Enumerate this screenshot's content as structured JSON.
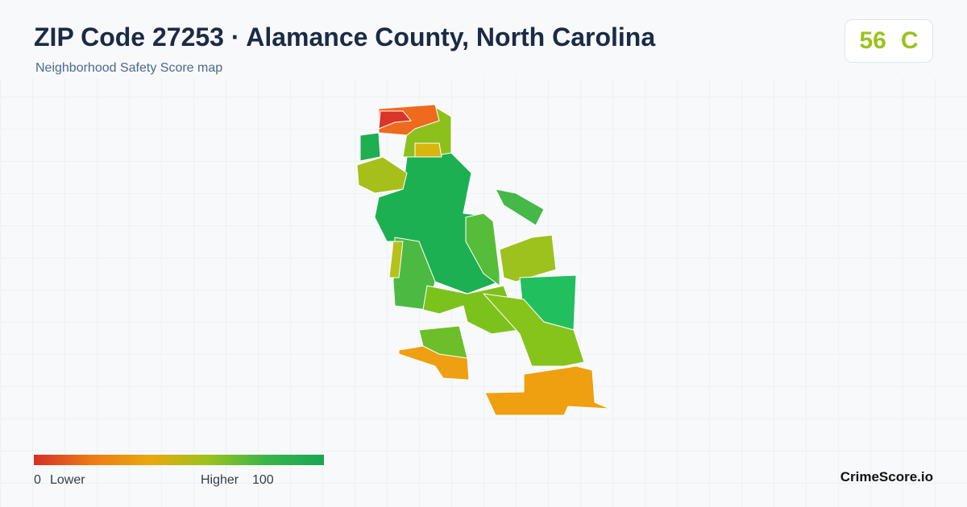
{
  "header": {
    "title": "ZIP Code 27253 · Alamance County, North Carolina",
    "subtitle": "Neighborhood Safety Score map"
  },
  "score": {
    "value": 56,
    "grade": "C"
  },
  "legend": {
    "min": 0,
    "min_label": "Lower",
    "max_label": "Higher",
    "max": 100
  },
  "brand": "CrimeScore.io"
}
